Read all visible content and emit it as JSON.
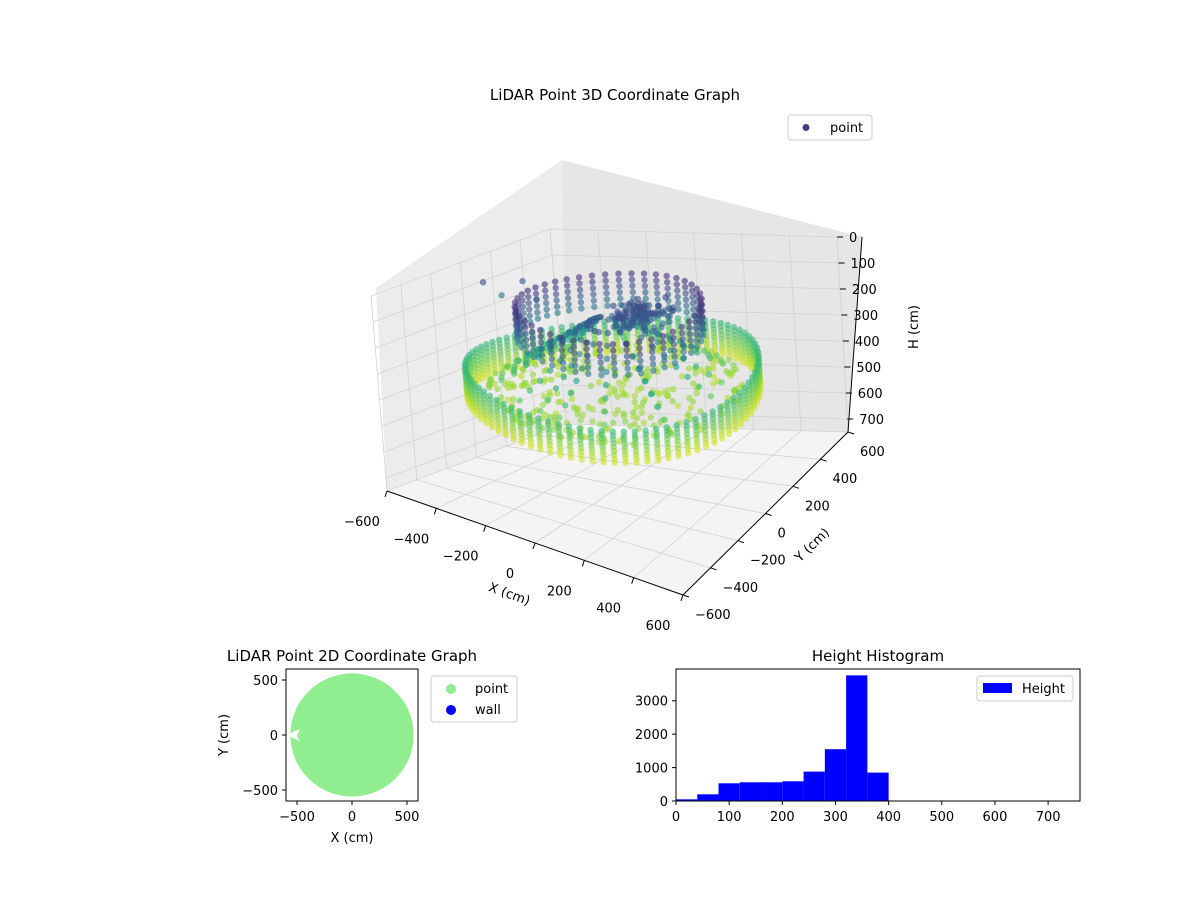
{
  "chart_data": [
    {
      "type": "scatter",
      "projection": "3d",
      "title": "LiDAR Point 3D Coordinate Graph",
      "xlabel": "X (cm)",
      "ylabel": "Y (cm)",
      "zlabel": "H (cm)",
      "xlim": [
        -600,
        600
      ],
      "ylim": [
        -600,
        600
      ],
      "zlim": [
        0,
        750
      ],
      "z_inverted": true,
      "xticks": [
        "−600",
        "−400",
        "−200",
        "0",
        "200",
        "400",
        "600"
      ],
      "yticks": [
        "−600",
        "−400",
        "−200",
        "0",
        "200",
        "400",
        "600"
      ],
      "zticks": [
        "0",
        "100",
        "200",
        "300",
        "400",
        "500",
        "600",
        "700"
      ],
      "legend": {
        "label": "point",
        "location": "top-right"
      },
      "colormap": "viridis",
      "grid": true,
      "shape": {
        "wall_radius": 520,
        "wall_height_range": [
          300,
          420
        ],
        "ceiling_ring_radius": 330,
        "ceiling_ring_height_range": [
          60,
          180
        ],
        "center_cluster_height": 100,
        "floor_height": 400
      },
      "outliers": [
        {
          "x": -590,
          "y": 120,
          "h": 100
        },
        {
          "x": -540,
          "y": 300,
          "h": 130
        },
        {
          "x": -600,
          "y": 250,
          "h": 180
        },
        {
          "x": -500,
          "y": 320,
          "h": 200
        }
      ]
    },
    {
      "type": "scatter",
      "title": "LiDAR Point 2D Coordinate Graph",
      "xlabel": "X (cm)",
      "ylabel": "Y (cm)",
      "xlim": [
        -600,
        600
      ],
      "ylim": [
        -600,
        600
      ],
      "xticks": [
        "−500",
        "0",
        "500"
      ],
      "yticks": [
        "500",
        "0",
        "−500"
      ],
      "series": [
        {
          "name": "point",
          "color": "#90ee90",
          "shape": "disk",
          "radius": 560
        },
        {
          "name": "wall",
          "color": "#0000ff",
          "count": 0
        }
      ],
      "legend": {
        "location": "outside-right"
      }
    },
    {
      "type": "bar",
      "title": "Height Histogram",
      "xlim": [
        0,
        760
      ],
      "ylim": [
        0,
        3950
      ],
      "xticks": [
        "0",
        "100",
        "200",
        "300",
        "400",
        "500",
        "600",
        "700"
      ],
      "yticks": [
        "0",
        "1000",
        "2000",
        "3000"
      ],
      "bin_edges": [
        0,
        40,
        80,
        120,
        160,
        200,
        240,
        280,
        320,
        360,
        400,
        440,
        480,
        520,
        560,
        600,
        640,
        680,
        720,
        760
      ],
      "values": [
        50,
        200,
        530,
        560,
        560,
        590,
        880,
        1550,
        3760,
        850,
        0,
        0,
        0,
        0,
        0,
        0,
        0,
        0,
        0
      ],
      "color": "#0000ff",
      "series": [
        {
          "name": "Height",
          "values": []
        }
      ],
      "legend": {
        "location": "top-right"
      }
    }
  ]
}
